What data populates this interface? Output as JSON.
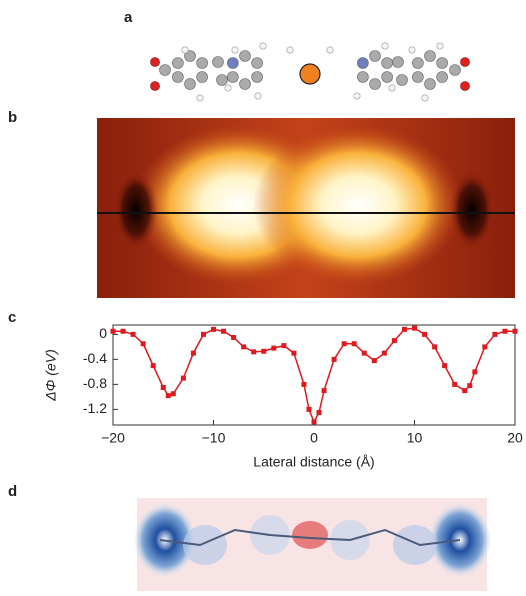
{
  "panels": {
    "a": "a",
    "b": "b",
    "c": "c",
    "d": "d"
  },
  "chart_data": {
    "type": "line",
    "xlabel": "Lateral distance (Å)",
    "ylabel": "ΔΦ (eV)",
    "x": [
      -20,
      -19,
      -18,
      -17,
      -16,
      -15,
      -14.5,
      -14,
      -13,
      -12,
      -11,
      -10,
      -9,
      -8,
      -7,
      -6,
      -5,
      -4,
      -3,
      -2,
      -1,
      -0.5,
      0,
      0.5,
      1,
      2,
      3,
      4,
      5,
      6,
      7,
      8,
      9,
      10,
      11,
      12,
      13,
      14,
      15,
      15.5,
      16,
      17,
      18,
      19,
      20
    ],
    "series": [
      {
        "color": "#e0191e",
        "values": [
          0.05,
          0.05,
          0.0,
          -0.15,
          -0.5,
          -0.85,
          -0.98,
          -0.95,
          -0.7,
          -0.3,
          0.0,
          0.08,
          0.05,
          -0.05,
          -0.2,
          -0.28,
          -0.27,
          -0.22,
          -0.18,
          -0.3,
          -0.8,
          -1.2,
          -1.4,
          -1.25,
          -0.9,
          -0.4,
          -0.15,
          -0.15,
          -0.3,
          -0.42,
          -0.3,
          -0.1,
          0.08,
          0.1,
          0.0,
          -0.2,
          -0.5,
          -0.8,
          -0.9,
          -0.82,
          -0.6,
          -0.2,
          0.0,
          0.05,
          0.05
        ]
      }
    ],
    "xlim": [
      -20,
      20
    ],
    "xticks": [
      {
        "value": -20,
        "label": "−20"
      },
      {
        "value": -10,
        "label": "−10"
      },
      0,
      10,
      20
    ],
    "ylim": [
      -1.45,
      0.15
    ],
    "yticks": [
      0,
      {
        "value": -0.4,
        "label": "-0.4"
      },
      {
        "value": -0.8,
        "label": "-0.8"
      },
      {
        "value": -1.2,
        "label": "-1.2"
      }
    ]
  }
}
